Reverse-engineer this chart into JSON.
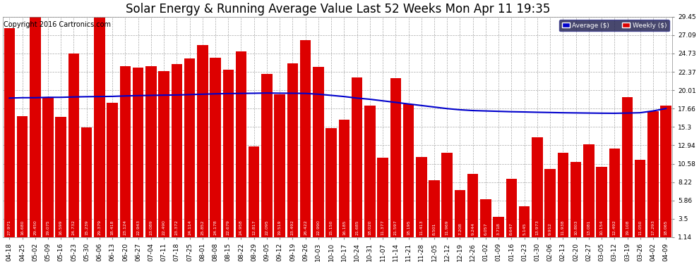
{
  "title": "Solar Energy & Running Average Value Last 52 Weeks Mon Apr 11 19:35",
  "copyright": "Copyright 2016 Cartronics.com",
  "categories": [
    "04-18",
    "04-25",
    "05-02",
    "05-09",
    "05-16",
    "05-23",
    "05-30",
    "06-06",
    "06-13",
    "06-20",
    "06-27",
    "07-04",
    "07-11",
    "07-18",
    "07-25",
    "08-01",
    "08-08",
    "08-15",
    "08-22",
    "08-29",
    "09-05",
    "09-12",
    "09-19",
    "09-26",
    "10-03",
    "10-10",
    "10-17",
    "10-24",
    "10-31",
    "11-07",
    "11-14",
    "11-21",
    "11-28",
    "12-05",
    "12-12",
    "12-19",
    "12-26",
    "01-02",
    "01-09",
    "01-16",
    "01-23",
    "01-30",
    "02-06",
    "02-13",
    "02-20",
    "02-27",
    "03-05",
    "03-12",
    "03-19",
    "03-26",
    "04-02",
    "04-09"
  ],
  "bar_vals": [
    27.971,
    16.68,
    29.45,
    19.075,
    16.599,
    24.732,
    15.239,
    29.379,
    18.418,
    23.124,
    22.943,
    23.089,
    22.49,
    23.372,
    24.114,
    25.852,
    24.178,
    22.679,
    24.958,
    12.817,
    22.095,
    19.519,
    23.492,
    26.422,
    22.99,
    15.15,
    16.185,
    21.685,
    18.02,
    11.377,
    21.597,
    18.195,
    11.413,
    8.501,
    11.969,
    7.208,
    9.244,
    6.057,
    3.718,
    8.647,
    5.145,
    13.973,
    9.912,
    11.938,
    10.803,
    13.081,
    10.154,
    12.492,
    19.108,
    11.05,
    17.293,
    18.065
  ],
  "avg_vals": [
    19.0,
    19.05,
    19.05,
    19.1,
    19.1,
    19.15,
    19.18,
    19.2,
    19.22,
    19.28,
    19.32,
    19.35,
    19.38,
    19.4,
    19.45,
    19.5,
    19.55,
    19.58,
    19.6,
    19.62,
    19.65,
    19.63,
    19.62,
    19.6,
    19.5,
    19.35,
    19.2,
    19.0,
    18.85,
    18.65,
    18.45,
    18.25,
    18.05,
    17.85,
    17.65,
    17.5,
    17.4,
    17.35,
    17.3,
    17.25,
    17.22,
    17.18,
    17.15,
    17.12,
    17.1,
    17.08,
    17.06,
    17.05,
    17.08,
    17.12,
    17.35,
    17.66
  ],
  "bar_color": "#dd0000",
  "line_color": "#0000cc",
  "bg_color": "#ffffff",
  "grid_color": "#aaaaaa",
  "yticks": [
    1.14,
    3.5,
    5.86,
    8.22,
    10.58,
    12.94,
    15.3,
    17.66,
    20.01,
    22.37,
    24.73,
    27.09,
    29.45
  ],
  "title_fontsize": 12,
  "copyright_fontsize": 7,
  "tick_fontsize": 6.5,
  "label_fontsize": 4.5
}
